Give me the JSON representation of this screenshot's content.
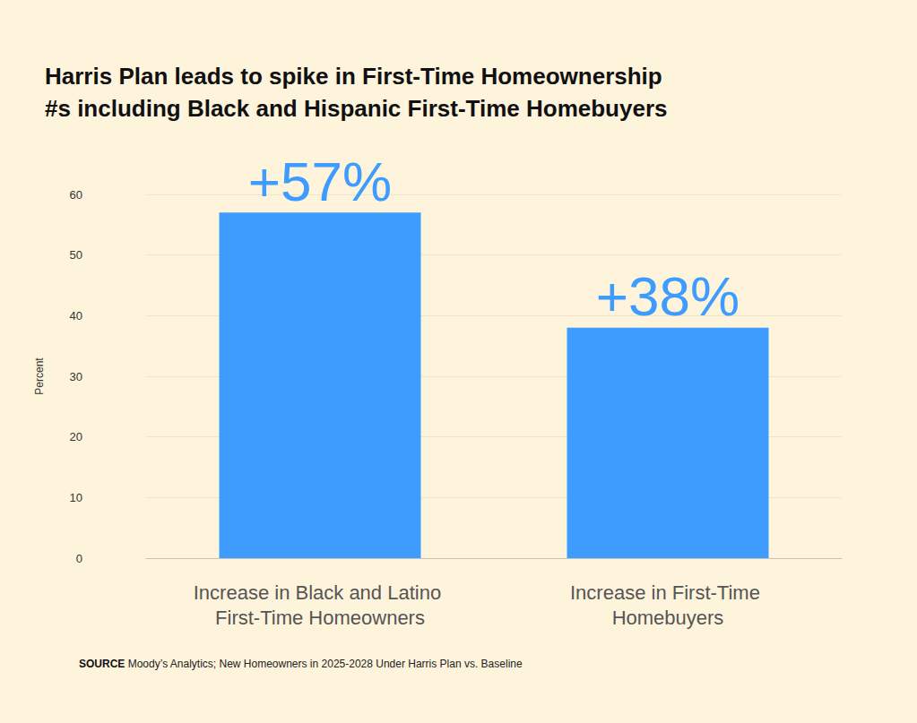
{
  "chart_data": {
    "type": "bar",
    "title": "Harris Plan leads to spike in First-Time Homeownership #s including Black and Hispanic First-Time Homebuyers",
    "categories": [
      "Increase in Black and Latino First-Time Homeowners",
      "Increase in First-Time Homebuyers"
    ],
    "values": [
      57,
      38
    ],
    "value_labels": [
      "+57%",
      "+38%"
    ],
    "data_labels": true,
    "color": "#3d9cfd",
    "ylabel": "Percent",
    "ylim": [
      0,
      60
    ],
    "yticks": [
      0,
      10,
      20,
      30,
      40,
      50,
      60
    ],
    "grid": true,
    "source_label": "SOURCE",
    "source": "Moody’s Analytics; New Homeowners in 2025-2028 Under Harris Plan vs. Baseline"
  }
}
